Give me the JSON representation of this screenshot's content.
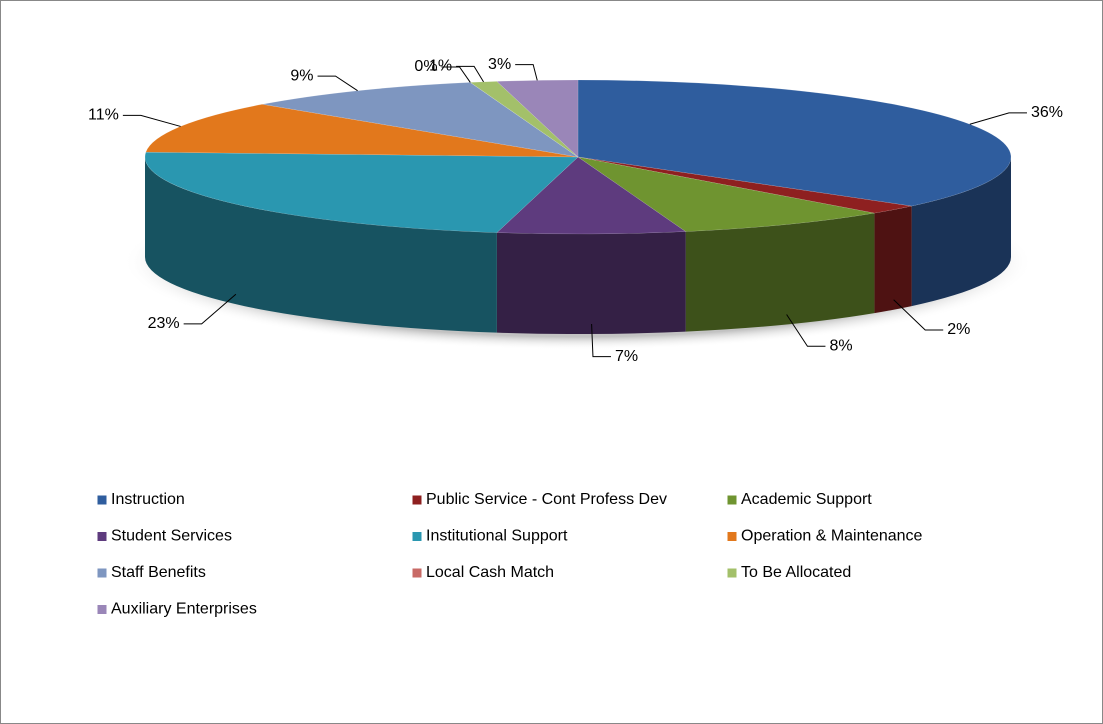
{
  "chart_data": {
    "type": "pie",
    "categories": [
      "Instruction",
      "Public Service - Cont Profess Dev",
      "Academic Support",
      "Student Services",
      "Institutional Support",
      "Operation & Maintenance",
      "Staff Benefits",
      "Local Cash Match",
      "To Be Allocated",
      "Auxiliary Enterprises"
    ],
    "values": [
      36,
      2,
      8,
      7,
      23,
      11,
      9,
      0,
      1,
      3
    ],
    "value_labels": [
      "36%",
      "2%",
      "8%",
      "7%",
      "23%",
      "11%",
      "9%",
      "0%",
      "1%",
      "3%"
    ],
    "colors": [
      "#2f5d9e",
      "#8e2020",
      "#6f9430",
      "#5e3b7e",
      "#2a97b0",
      "#e2781c",
      "#7e96c0",
      "#c86a66",
      "#a3c06a",
      "#9a86b8"
    ]
  }
}
